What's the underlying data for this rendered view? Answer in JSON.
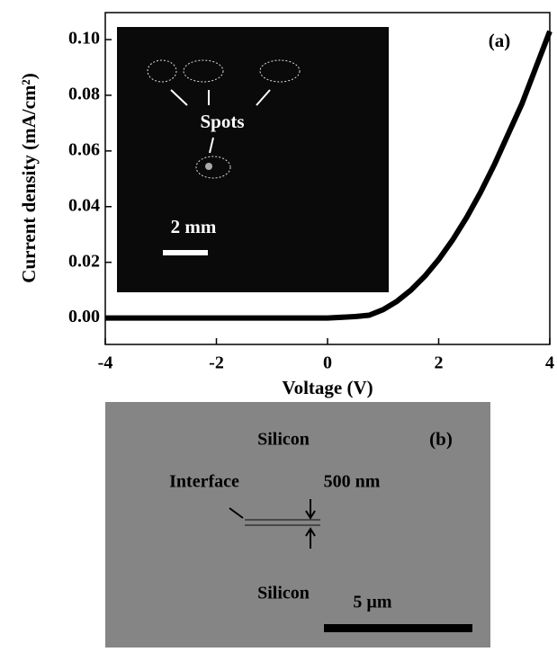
{
  "chart_data": {
    "type": "line",
    "panel_label": "(a)",
    "x_label": "Voltage (V)",
    "y_label": "Current density (mA/cm²)",
    "x": [
      -4,
      -3.5,
      -3,
      -2.5,
      -2,
      -1.5,
      -1,
      -0.5,
      0,
      0.5,
      0.75,
      1,
      1.25,
      1.5,
      1.75,
      2,
      2.25,
      2.5,
      2.75,
      3,
      3.25,
      3.5,
      3.75,
      4
    ],
    "values": [
      0,
      0,
      0,
      0,
      0,
      0,
      0,
      0,
      0,
      0.0005,
      0.001,
      0.003,
      0.006,
      0.01,
      0.015,
      0.021,
      0.028,
      0.036,
      0.045,
      0.055,
      0.066,
      0.077,
      0.09,
      0.103
    ],
    "color": "#000000",
    "xlim": [
      -4,
      4
    ],
    "ylim": [
      -0.0095,
      0.1097
    ],
    "xticks": [
      -4,
      -2,
      0,
      2,
      4
    ],
    "yticks": [
      {
        "value": 0,
        "label": "0.00"
      },
      {
        "value": 0.02,
        "label": "0.02"
      },
      {
        "value": 0.04,
        "label": "0.04"
      },
      {
        "value": 0.06,
        "label": "0.06"
      },
      {
        "value": 0.08,
        "label": "0.08"
      },
      {
        "value": 0.1,
        "label": "0.10"
      }
    ],
    "inset": {
      "annotation": "Spots",
      "scale": "2 mm"
    }
  },
  "panel_b": {
    "label": "(b)",
    "top_layer": "Silicon",
    "bottom_layer": "Silicon",
    "interface": "Interface",
    "thickness": "500 nm",
    "scale": "5 µm"
  }
}
